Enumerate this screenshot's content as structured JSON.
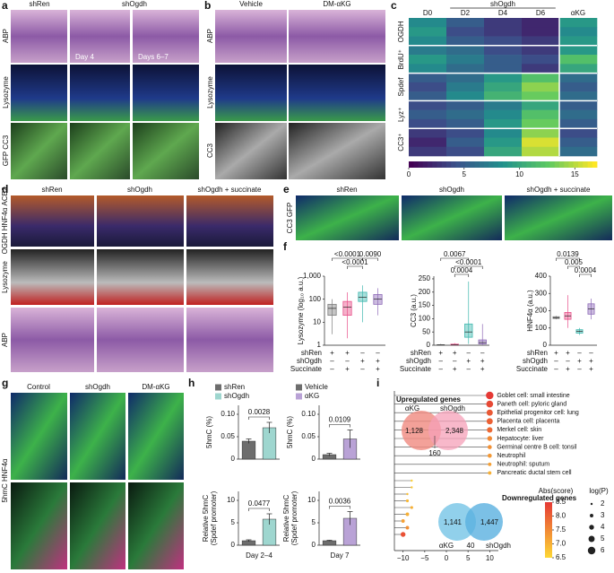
{
  "panel_labels": [
    "a",
    "b",
    "c",
    "d",
    "e",
    "f",
    "g",
    "h",
    "i"
  ],
  "panel_a": {
    "columns": [
      "shRen",
      "shOgdh"
    ],
    "rows": [
      "ABP",
      "Lysozyme",
      "GFP CC3"
    ],
    "days": [
      "Day 4",
      "Days 6–7"
    ]
  },
  "panel_b": {
    "columns": [
      "Vehicle",
      "DM-αKG"
    ],
    "rows": [
      "ABP",
      "Lysozyme",
      "CC3"
    ]
  },
  "panel_d": {
    "columns": [
      "shRen",
      "shOgdh",
      "shOgdh + succinate"
    ],
    "rows": [
      "OGDH HNF4α ACE2",
      "Lysozyme",
      "ABP"
    ]
  },
  "panel_e": {
    "columns": [
      "shRen",
      "shOgdh",
      "shOgdh + succinate"
    ],
    "stain": "CC3 GFP"
  },
  "panel_g": {
    "columns": [
      "Control",
      "shOgdh",
      "DM-αKG"
    ],
    "stain": "5hmC HNF4α"
  },
  "venn_up": {
    "title": "Upregulated genes",
    "sets": [
      "αKG",
      "shOgdh"
    ],
    "counts": [
      "1,128",
      "2,348",
      "160"
    ]
  },
  "venn_down": {
    "title": "Downregulated genes",
    "sets": [
      "αKG",
      "shOgdh"
    ],
    "counts": [
      "1,141",
      "1,447",
      "40"
    ]
  },
  "chart_data": [
    {
      "type": "heatmap",
      "group_label": "shOgdh",
      "columns": [
        "D0",
        "D2",
        "D4",
        "D6",
        "αKG"
      ],
      "row_groups": [
        "OGDH",
        "BrdU⁺",
        "Spdef",
        "Lyz⁺",
        "CC3⁺"
      ],
      "values": [
        [
          8,
          5,
          3,
          2,
          9
        ],
        [
          9,
          4,
          3,
          2,
          8
        ],
        [
          8,
          5,
          4,
          3,
          9
        ],
        [
          7,
          6,
          4,
          3,
          9
        ],
        [
          9,
          7,
          5,
          4,
          12
        ],
        [
          8,
          6,
          5,
          3,
          10
        ],
        [
          5,
          6,
          9,
          12,
          6
        ],
        [
          4,
          7,
          10,
          14,
          5
        ],
        [
          5,
          8,
          11,
          13,
          6
        ],
        [
          4,
          5,
          7,
          10,
          5
        ],
        [
          5,
          6,
          8,
          12,
          6
        ],
        [
          4,
          5,
          9,
          13,
          5
        ],
        [
          3,
          4,
          8,
          14,
          4
        ],
        [
          2,
          5,
          9,
          16,
          5
        ],
        [
          3,
          4,
          10,
          15,
          6
        ]
      ],
      "zlim": [
        0,
        17
      ],
      "zticks": [
        0,
        5,
        10,
        15
      ]
    },
    {
      "type": "box",
      "ylabel": "Lysozyme (log₁₀ a.u.)",
      "log": true,
      "ylim": [
        1,
        1000
      ],
      "yticks": [
        1,
        10,
        100,
        {
          "value": 1000,
          "label": "1,000"
        }
      ],
      "groups": [
        {
          "color": "#7f7f7f",
          "min": 3,
          "q1": 20,
          "median": 40,
          "q3": 60,
          "max": 100
        },
        {
          "color": "#e8518a",
          "min": 2,
          "q1": 20,
          "median": 45,
          "q3": 80,
          "max": 200
        },
        {
          "color": "#3fb8af",
          "min": 10,
          "q1": 80,
          "median": 120,
          "q3": 200,
          "max": 400
        },
        {
          "color": "#8e6bb8",
          "min": 20,
          "q1": 60,
          "median": 100,
          "q3": 160,
          "max": 300
        }
      ],
      "pvalues": [
        "<0.0001",
        "0.0090",
        "<0.0001"
      ],
      "conditions": [
        {
          "label": "shRen",
          "signs": [
            "+",
            "+",
            "–",
            "–"
          ]
        },
        {
          "label": "shOgdh",
          "signs": [
            "–",
            "–",
            "+",
            "+"
          ]
        },
        {
          "label": "Succinate",
          "signs": [
            "–",
            "+",
            "–",
            "+"
          ]
        }
      ]
    },
    {
      "type": "box",
      "ylabel": "CC3 (a.u.)",
      "log": false,
      "ylim": [
        0,
        260
      ],
      "yticks": [
        0,
        50,
        100,
        150,
        200,
        250
      ],
      "groups": [
        {
          "color": "#7f7f7f",
          "min": 0,
          "q1": 0,
          "median": 1,
          "q3": 2,
          "max": 5
        },
        {
          "color": "#e8518a",
          "min": 0,
          "q1": 1,
          "median": 2,
          "q3": 4,
          "max": 8
        },
        {
          "color": "#3fb8af",
          "min": 5,
          "q1": 30,
          "median": 50,
          "q3": 80,
          "max": 240
        },
        {
          "color": "#8e6bb8",
          "min": 0,
          "q1": 5,
          "median": 10,
          "q3": 20,
          "max": 80
        }
      ],
      "pvalues": [
        "0.0067",
        "<0.0001",
        "0.0004"
      ],
      "conditions": [
        {
          "label": "shRen",
          "signs": [
            "+",
            "+",
            "–",
            "–"
          ]
        },
        {
          "label": "shOgdh",
          "signs": [
            "–",
            "–",
            "+",
            "+"
          ]
        },
        {
          "label": "Succinate",
          "signs": [
            "–",
            "+",
            "–",
            "+"
          ]
        }
      ]
    },
    {
      "type": "box",
      "ylabel": "HNF4α (a.u.)",
      "log": false,
      "ylim": [
        0,
        400
      ],
      "yticks": [
        0,
        100,
        200,
        300,
        400
      ],
      "groups": [
        {
          "color": "#7f7f7f",
          "min": 150,
          "q1": 155,
          "median": 160,
          "q3": 165,
          "max": 170
        },
        {
          "color": "#e8518a",
          "min": 100,
          "q1": 150,
          "median": 170,
          "q3": 190,
          "max": 290
        },
        {
          "color": "#3fb8af",
          "min": 60,
          "q1": 70,
          "median": 80,
          "q3": 90,
          "max": 100
        },
        {
          "color": "#8e6bb8",
          "min": 150,
          "q1": 180,
          "median": 210,
          "q3": 240,
          "max": 270
        }
      ],
      "pvalues": [
        "0.0139",
        "0.005",
        "0.0004"
      ],
      "conditions": [
        {
          "label": "shRen",
          "signs": [
            "+",
            "+",
            "–",
            "–"
          ]
        },
        {
          "label": "shOgdh",
          "signs": [
            "–",
            "–",
            "+",
            "+"
          ]
        },
        {
          "label": "Succinate",
          "signs": [
            "–",
            "+",
            "–",
            "+"
          ]
        }
      ]
    },
    {
      "type": "bar",
      "ylabel": [
        "5hmC (%)"
      ],
      "legend": [
        "shRen",
        "shOgdh"
      ],
      "values": [
        0.04,
        0.07
      ],
      "errors": [
        0.005,
        0.012
      ],
      "colors": [
        "#6d6d6d",
        "#9ed6cf"
      ],
      "ylim": [
        0,
        0.12
      ],
      "yticks": [
        0,
        0.05,
        {
          "value": 0.1,
          "label": "0.10"
        }
      ],
      "pvalue": "0.0028"
    },
    {
      "type": "bar",
      "ylabel": [
        "Relative 5hmC",
        "(Spdef promoter)"
      ],
      "xlabel": "Day 2–4",
      "values": [
        1,
        5.8
      ],
      "errors": [
        0.2,
        1.2
      ],
      "colors": [
        "#6d6d6d",
        "#9ed6cf"
      ],
      "ylim": [
        0,
        12
      ],
      "yticks": [
        0,
        5,
        10
      ],
      "pvalue": "0.0477"
    },
    {
      "type": "bar",
      "ylabel": [
        "5hmC (%)"
      ],
      "legend": [
        "Vehicle",
        "αKG"
      ],
      "values": [
        0.01,
        0.045
      ],
      "errors": [
        0.003,
        0.02
      ],
      "colors": [
        "#6d6d6d",
        "#b9a2d6"
      ],
      "ylim": [
        0,
        0.12
      ],
      "yticks": [
        0,
        0.05,
        {
          "value": 0.1,
          "label": "0.10"
        }
      ],
      "pvalue": "0.0109"
    },
    {
      "type": "bar",
      "ylabel": [
        "Relative 5hmC",
        "(Spdef promoter)"
      ],
      "xlabel": "Day 7",
      "values": [
        1,
        6
      ],
      "errors": [
        0.1,
        1.5
      ],
      "colors": [
        "#6d6d6d",
        "#b9a2d6"
      ],
      "ylim": [
        0,
        12
      ],
      "yticks": [
        0,
        5,
        10
      ],
      "pvalue": "0.0036"
    },
    {
      "type": "lollipop",
      "categories": [
        "Goblet cell: small intestine",
        "Paneth cell: pyloric gland",
        "Epithelial progenitor cell: lung",
        "Placenta cell: placenta",
        "Merkel cell: skin",
        "Hepatocyte: liver",
        "Germinal centre B cell: tonsil",
        "Neutrophil",
        "Neutrophil: sputum",
        "Pancreatic ductal stem cell",
        null,
        null,
        null,
        null,
        null,
        null,
        null,
        null,
        null
      ],
      "values": [
        10,
        10,
        10,
        10,
        10,
        10,
        10,
        10,
        10,
        10,
        -8,
        -8,
        -9,
        -9,
        -8,
        -9,
        -10,
        -9,
        -10
      ],
      "scores": [
        8.5,
        8.3,
        8.1,
        8,
        7.9,
        7.5,
        7.4,
        7.3,
        7.2,
        7,
        6.6,
        6.7,
        6.8,
        6.9,
        7,
        7,
        7.2,
        7.4,
        8.2
      ],
      "logp": [
        6,
        5.5,
        5,
        5,
        4.5,
        4,
        3.5,
        3.5,
        3,
        3,
        2,
        2,
        2,
        2.5,
        2.5,
        3,
        3,
        3,
        4
      ],
      "xlim": [
        -12,
        12
      ],
      "xticks": [
        {
          "value": -10,
          "label": "−10"
        },
        {
          "value": -5,
          "label": "−5"
        },
        0,
        5,
        10
      ],
      "score_title": "Abs(score)",
      "score_ticks": [
        6.5,
        {
          "value": 7,
          "label": "7.0"
        },
        7.5,
        {
          "value": 8,
          "label": "8.0"
        },
        8.5
      ],
      "logp_title": "log(P)",
      "logp_ticks": [
        2,
        3,
        4,
        5,
        6
      ]
    }
  ]
}
